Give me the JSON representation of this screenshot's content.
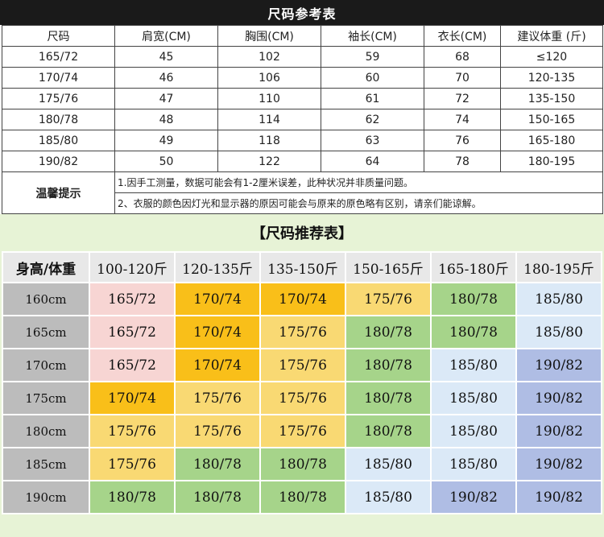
{
  "reference": {
    "title": "尺码参考表",
    "headers": [
      "尺码",
      "肩宽(CM)",
      "胸围(CM)",
      "袖长(CM)",
      "衣长(CM)",
      "建议体重 (斤)"
    ],
    "rows": [
      [
        "165/72",
        "45",
        "102",
        "59",
        "68",
        "≤120"
      ],
      [
        "170/74",
        "46",
        "106",
        "60",
        "70",
        "120-135"
      ],
      [
        "175/76",
        "47",
        "110",
        "61",
        "72",
        "135-150"
      ],
      [
        "180/78",
        "48",
        "114",
        "62",
        "74",
        "150-165"
      ],
      [
        "185/80",
        "49",
        "118",
        "63",
        "76",
        "165-180"
      ],
      [
        "190/82",
        "50",
        "122",
        "64",
        "78",
        "180-195"
      ]
    ],
    "tips_label": "温馨提示",
    "notes": [
      "1.因手工测量，数据可能会有1-2厘米误差，此种状况并非质量问题。",
      "2、衣服的颜色因灯光和显示器的原因可能会与原来的原色略有区别，请亲们能谅解。"
    ]
  },
  "recommendation": {
    "title": "【尺码推荐表】",
    "corner": "身高/体重",
    "weights": [
      "100-120斤",
      "120-135斤",
      "135-150斤",
      "150-165斤",
      "165-180斤",
      "180-195斤"
    ],
    "rows": [
      {
        "height": "160cm",
        "cells": [
          "165/72",
          "170/74",
          "170/74",
          "175/76",
          "180/78",
          "185/80"
        ]
      },
      {
        "height": "165cm",
        "cells": [
          "165/72",
          "170/74",
          "175/76",
          "180/78",
          "180/78",
          "185/80"
        ]
      },
      {
        "height": "170cm",
        "cells": [
          "165/72",
          "170/74",
          "175/76",
          "180/78",
          "185/80",
          "190/82"
        ]
      },
      {
        "height": "175cm",
        "cells": [
          "170/74",
          "175/76",
          "175/76",
          "180/78",
          "185/80",
          "190/82"
        ]
      },
      {
        "height": "180cm",
        "cells": [
          "175/76",
          "175/76",
          "175/76",
          "180/78",
          "185/80",
          "190/82"
        ]
      },
      {
        "height": "185cm",
        "cells": [
          "175/76",
          "180/78",
          "180/78",
          "185/80",
          "185/80",
          "190/82"
        ]
      },
      {
        "height": "190cm",
        "cells": [
          "180/78",
          "180/78",
          "180/78",
          "185/80",
          "190/82",
          "190/82"
        ]
      }
    ],
    "size_colors": {
      "165/72": "#f7d5d3",
      "170/74": "#f9bf19",
      "175/76": "#f9d973",
      "180/78": "#a6d48a",
      "185/80": "#dbe9f7",
      "190/82": "#afbde4"
    }
  }
}
